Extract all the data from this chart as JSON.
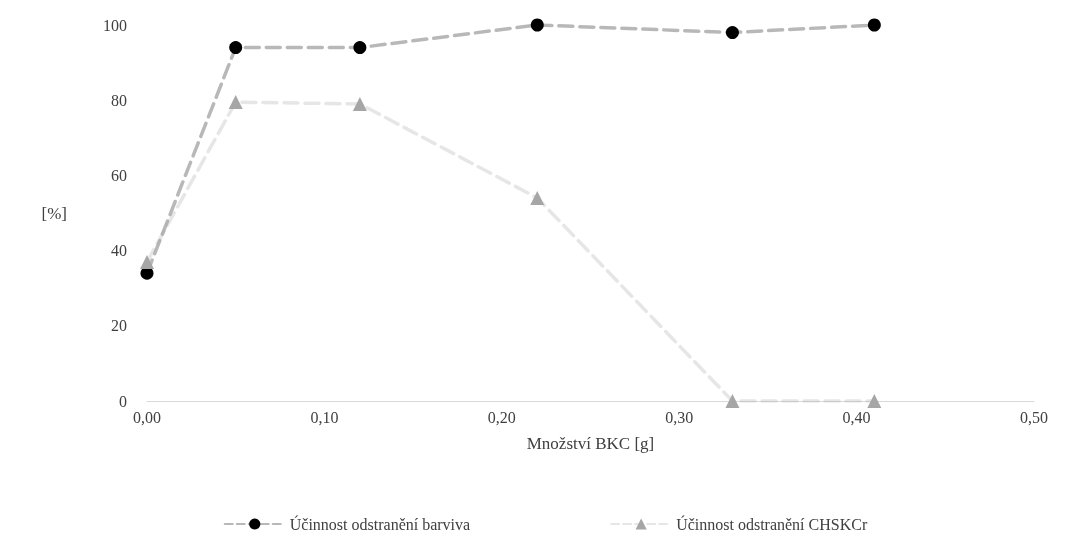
{
  "chart_data": {
    "type": "line",
    "xlabel": "Množství BKC [g]",
    "ylabel": "[%]",
    "x": [
      0,
      0.05,
      0.12,
      0.22,
      0.33,
      0.41
    ],
    "series": [
      {
        "name": "Účinnost odstranění barviva",
        "color": "#000000",
        "marker": "circle",
        "values": [
          34,
          94,
          94,
          100,
          98,
          100
        ]
      },
      {
        "name": "Účinnost odstranění CHSKCr",
        "color": "#a6a6a6",
        "marker": "triangle",
        "values": [
          37,
          79.5,
          79,
          54,
          0,
          0
        ]
      }
    ],
    "xlim": [
      0,
      0.5
    ],
    "xticks": [
      {
        "value": 0,
        "label": "0,00"
      },
      {
        "value": 0.1,
        "label": "0,10"
      },
      {
        "value": 0.2,
        "label": "0,20"
      },
      {
        "value": 0.3,
        "label": "0,30"
      },
      {
        "value": 0.4,
        "label": "0,40"
      },
      {
        "value": 0.5,
        "label": "0,50"
      }
    ],
    "ylim": [
      0,
      100
    ],
    "yticks": [
      0,
      20,
      40,
      60,
      80,
      100
    ],
    "grid": false,
    "legend": "bottom",
    "line_style": "dashed"
  }
}
